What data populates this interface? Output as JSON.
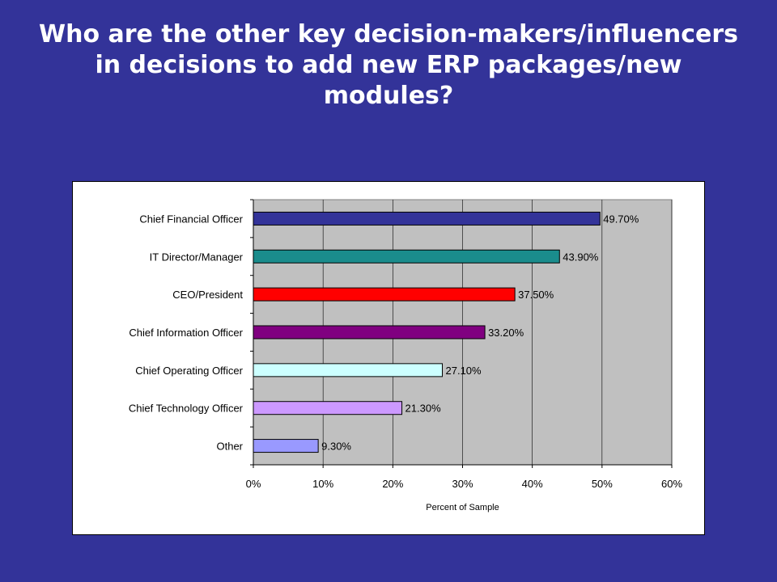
{
  "slide": {
    "title": "Who are the other key decision-makers/influencers in decisions to add new ERP packages/new modules?"
  },
  "chart_data": {
    "type": "bar",
    "orientation": "horizontal",
    "categories": [
      "Chief Financial Officer",
      "IT Director/Manager",
      "CEO/President",
      "Chief Information Officer",
      "Chief Operating Officer",
      "Chief Technology Officer",
      "Other"
    ],
    "values": [
      49.7,
      43.9,
      37.5,
      33.2,
      27.1,
      21.3,
      9.3
    ],
    "value_labels": [
      "49.70%",
      "43.90%",
      "37.50%",
      "33.20%",
      "27.10%",
      "21.30%",
      "9.30%"
    ],
    "bar_colors": [
      "#333399",
      "#1a8c8c",
      "#ff0000",
      "#800080",
      "#ccffff",
      "#cc99ff",
      "#9999ff"
    ],
    "xlim": [
      0,
      60
    ],
    "x_ticks": [
      0,
      10,
      20,
      30,
      40,
      50,
      60
    ],
    "x_tick_labels": [
      "0%",
      "10%",
      "20%",
      "30%",
      "40%",
      "50%",
      "60%"
    ],
    "xlabel": "Percent of Sample",
    "ylabel": "",
    "grid": "vertical",
    "plot_background": "#c0c0c0",
    "legend": "none"
  }
}
